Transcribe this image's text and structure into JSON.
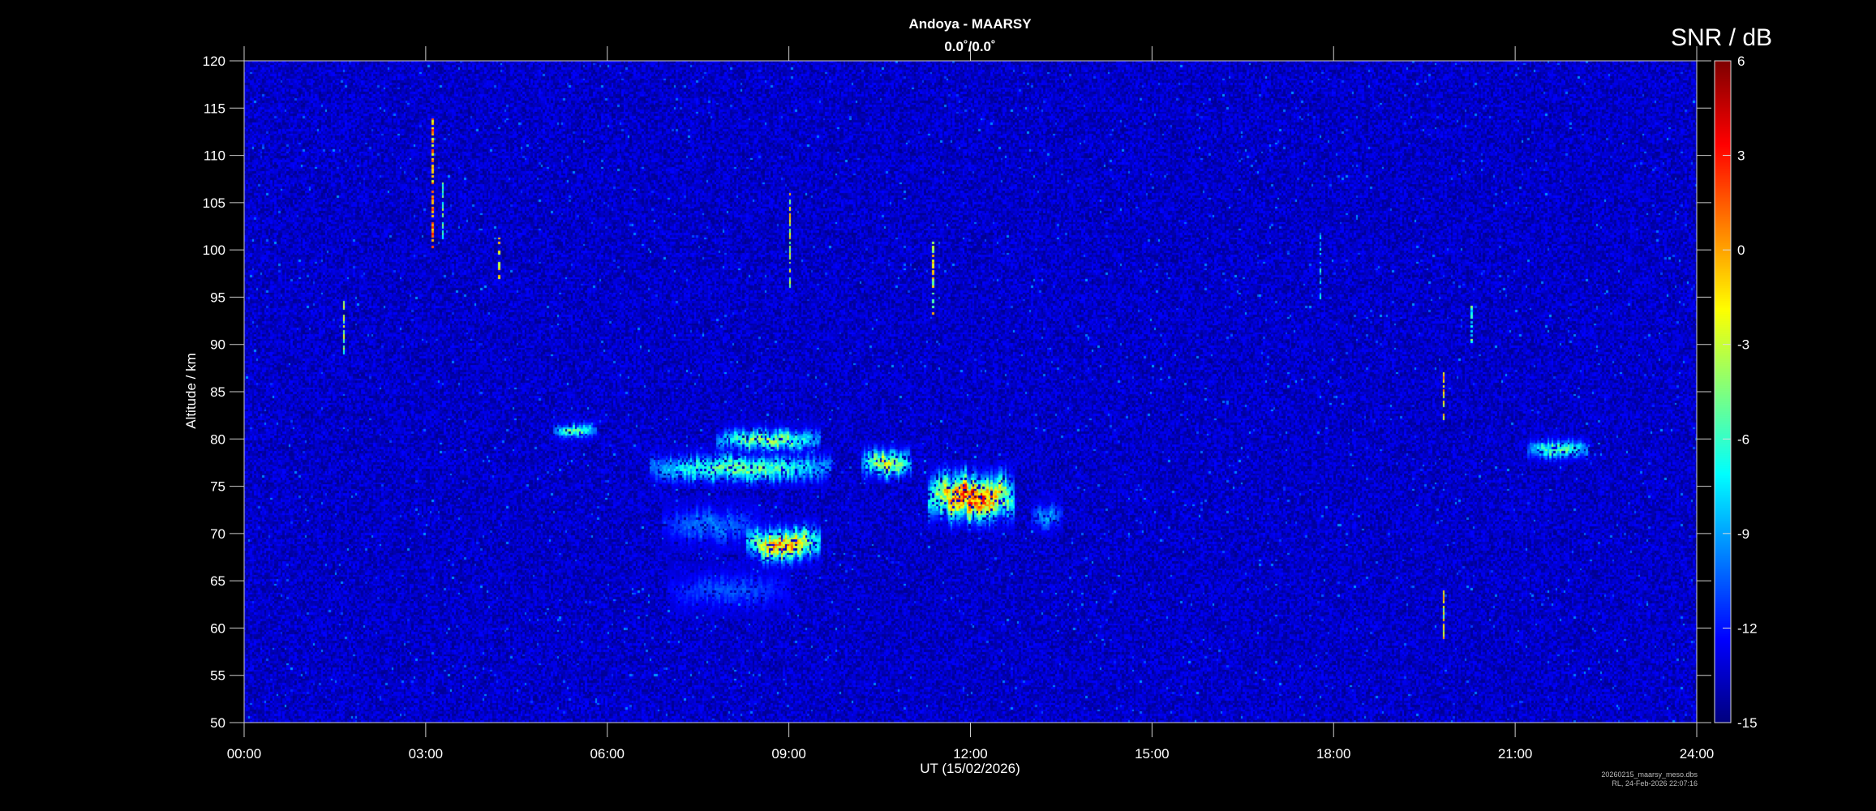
{
  "chart_data": {
    "type": "heatmap",
    "title": "Andoya - MAARSY",
    "subtitle": "0.0˚/0.0˚",
    "xlabel": "UT (15/02/2026)",
    "ylabel": "Altitude / km",
    "xlim_hours": [
      0,
      24
    ],
    "ylim": [
      50,
      120
    ],
    "xticks": [
      "00:00",
      "03:00",
      "06:00",
      "09:00",
      "12:00",
      "15:00",
      "18:00",
      "21:00",
      "24:00"
    ],
    "yticks": [
      50,
      55,
      60,
      65,
      70,
      75,
      80,
      85,
      90,
      95,
      100,
      105,
      110,
      115,
      120
    ],
    "colorbar": {
      "label": "SNR / dB",
      "range": [
        -15,
        6
      ],
      "ticks": [
        6,
        3,
        0,
        -3,
        -6,
        -9,
        -12,
        -15
      ],
      "colormap": "jet"
    },
    "background_snr_db": -13.5,
    "echo_regions": [
      {
        "t_start": 6.7,
        "t_end": 9.7,
        "alt": 77,
        "thickness_km": 1.5,
        "peak_snr_db": -3
      },
      {
        "t_start": 7.8,
        "t_end": 9.5,
        "alt": 80,
        "thickness_km": 1.2,
        "peak_snr_db": -2
      },
      {
        "t_start": 10.2,
        "t_end": 11.0,
        "alt": 77.5,
        "thickness_km": 1.5,
        "peak_snr_db": 0
      },
      {
        "t_start": 11.3,
        "t_end": 12.7,
        "alt": 74,
        "thickness_km": 2.5,
        "peak_snr_db": 6
      },
      {
        "t_start": 8.3,
        "t_end": 9.5,
        "alt": 69,
        "thickness_km": 1.8,
        "peak_snr_db": 3
      },
      {
        "t_start": 6.9,
        "t_end": 8.5,
        "alt": 71,
        "thickness_km": 2.0,
        "peak_snr_db": -9
      },
      {
        "t_start": 7.0,
        "t_end": 9.0,
        "alt": 64,
        "thickness_km": 2.0,
        "peak_snr_db": -10
      },
      {
        "t_start": 13.0,
        "t_end": 13.5,
        "alt": 72,
        "thickness_km": 1.5,
        "peak_snr_db": -8
      },
      {
        "t_start": 5.1,
        "t_end": 5.8,
        "alt": 81,
        "thickness_km": 0.8,
        "peak_snr_db": -3
      },
      {
        "t_start": 21.2,
        "t_end": 22.2,
        "alt": 79,
        "thickness_km": 1.0,
        "peak_snr_db": -3
      }
    ],
    "vertical_streaks": [
      {
        "t": 3.1,
        "alt_min": 100,
        "alt_max": 114,
        "peak_snr_db": 3
      },
      {
        "t": 9.0,
        "alt_min": 96,
        "alt_max": 106,
        "peak_snr_db": 0
      },
      {
        "t": 11.35,
        "alt_min": 93,
        "alt_max": 101,
        "peak_snr_db": 0
      },
      {
        "t": 4.2,
        "alt_min": 97,
        "alt_max": 102,
        "peak_snr_db": 2
      },
      {
        "t": 1.65,
        "alt_min": 89,
        "alt_max": 95,
        "peak_snr_db": -2
      },
      {
        "t": 19.8,
        "alt_min": 59,
        "alt_max": 64,
        "peak_snr_db": 0
      },
      {
        "t": 19.8,
        "alt_min": 82,
        "alt_max": 87,
        "peak_snr_db": 2
      },
      {
        "t": 20.25,
        "alt_min": 90,
        "alt_max": 94,
        "peak_snr_db": -3
      },
      {
        "t": 3.25,
        "alt_min": 101,
        "alt_max": 107,
        "peak_snr_db": -2
      },
      {
        "t": 17.75,
        "alt_min": 95,
        "alt_max": 102,
        "peak_snr_db": -6
      }
    ],
    "grid": false
  },
  "footer": {
    "filename": "20260215_maarsy_meso.dbs",
    "stamp": "RL, 24-Feb-2026 22:07:16"
  }
}
